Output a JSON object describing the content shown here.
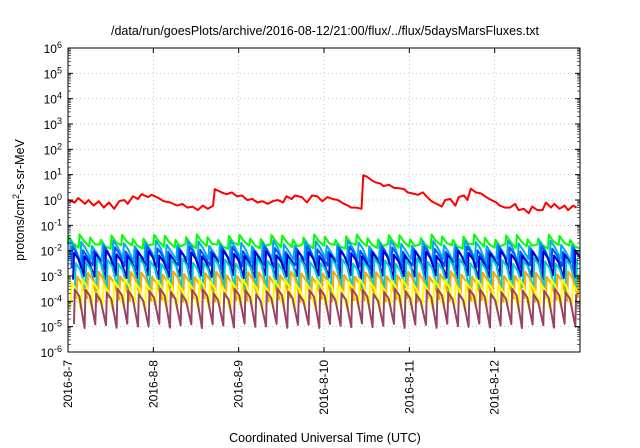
{
  "chart_data": {
    "type": "line",
    "title": "/data/run/goesPlots/archive/2016-08-12/21:00/flux/../flux/5daysMarsFluxes.txt",
    "xlabel": "Coordinated Universal Time (UTC)",
    "ylabel_base": "protons/cm",
    "ylabel_sup": "2",
    "ylabel_rest": "-s-sr-MeV",
    "yscale": "log",
    "ylim_exp": [
      -6,
      6
    ],
    "ytick_base": "10",
    "ytick_exponents": [
      "-6",
      "-5",
      "-4",
      "-3",
      "-2",
      "-1",
      "0",
      "1",
      "2",
      "3",
      "4",
      "5",
      "6"
    ],
    "xticks": [
      "2016-8-7",
      "2016-8-8",
      "2016-8-9",
      "2016-8-10",
      "2016-8-11",
      "2016-8-12"
    ],
    "xlim_days": [
      0,
      6.0
    ],
    "grid": true,
    "legend": "none",
    "series": [
      {
        "color": "#ff0000",
        "points": [
          [
            0.0,
            1.0
          ],
          [
            0.08,
            0.8
          ],
          [
            0.12,
            1.2
          ],
          [
            0.2,
            0.7
          ],
          [
            0.24,
            1.0
          ],
          [
            0.3,
            0.6
          ],
          [
            0.36,
            0.9
          ],
          [
            0.42,
            0.5
          ],
          [
            0.48,
            0.8
          ],
          [
            0.54,
            0.45
          ],
          [
            0.6,
            0.9
          ],
          [
            0.66,
            1.0
          ],
          [
            0.7,
            0.7
          ],
          [
            0.76,
            1.4
          ],
          [
            0.82,
            1.1
          ],
          [
            0.86,
            1.7
          ],
          [
            0.94,
            1.3
          ],
          [
            0.98,
            1.6
          ],
          [
            1.06,
            1.2
          ],
          [
            1.12,
            0.9
          ],
          [
            1.2,
            0.8
          ],
          [
            1.28,
            0.6
          ],
          [
            1.34,
            0.7
          ],
          [
            1.4,
            0.5
          ],
          [
            1.46,
            0.55
          ],
          [
            1.52,
            0.4
          ],
          [
            1.58,
            0.6
          ],
          [
            1.64,
            0.45
          ],
          [
            1.7,
            0.6
          ],
          [
            1.72,
            2.7
          ],
          [
            1.8,
            2.0
          ],
          [
            1.86,
            1.7
          ],
          [
            1.92,
            2.0
          ],
          [
            1.98,
            1.4
          ],
          [
            2.04,
            1.5
          ],
          [
            2.1,
            1.0
          ],
          [
            2.16,
            1.1
          ],
          [
            2.22,
            0.8
          ],
          [
            2.28,
            0.9
          ],
          [
            2.34,
            0.7
          ],
          [
            2.4,
            0.9
          ],
          [
            2.46,
            1.0
          ],
          [
            2.52,
            0.8
          ],
          [
            2.56,
            1.4
          ],
          [
            2.62,
            1.1
          ],
          [
            2.66,
            1.5
          ],
          [
            2.74,
            1.3
          ],
          [
            2.8,
            0.8
          ],
          [
            2.86,
            1.5
          ],
          [
            2.92,
            1.4
          ],
          [
            2.98,
            0.9
          ],
          [
            3.04,
            1.3
          ],
          [
            3.1,
            1.1
          ],
          [
            3.16,
            1.0
          ],
          [
            3.22,
            0.75
          ],
          [
            3.28,
            0.6
          ],
          [
            3.32,
            0.5
          ],
          [
            3.38,
            0.5
          ],
          [
            3.44,
            0.45
          ],
          [
            3.46,
            9.5
          ],
          [
            3.5,
            8.5
          ],
          [
            3.56,
            6.0
          ],
          [
            3.6,
            5.0
          ],
          [
            3.66,
            4.5
          ],
          [
            3.7,
            3.5
          ],
          [
            3.76,
            4.0
          ],
          [
            3.82,
            3.0
          ],
          [
            3.88,
            2.9
          ],
          [
            3.94,
            2.7
          ],
          [
            3.98,
            2.0
          ],
          [
            4.04,
            1.8
          ],
          [
            4.1,
            1.6
          ],
          [
            4.16,
            2.0
          ],
          [
            4.2,
            1.4
          ],
          [
            4.26,
            0.9
          ],
          [
            4.32,
            0.7
          ],
          [
            4.38,
            0.55
          ],
          [
            4.42,
            1.0
          ],
          [
            4.48,
            1.1
          ],
          [
            4.54,
            0.6
          ],
          [
            4.58,
            1.3
          ],
          [
            4.64,
            1.5
          ],
          [
            4.68,
            1.0
          ],
          [
            4.72,
            2.8
          ],
          [
            4.78,
            2.0
          ],
          [
            4.84,
            1.8
          ],
          [
            4.9,
            1.3
          ],
          [
            4.96,
            1.0
          ],
          [
            5.02,
            0.8
          ],
          [
            5.06,
            0.6
          ],
          [
            5.12,
            0.5
          ],
          [
            5.18,
            0.5
          ],
          [
            5.24,
            0.7
          ],
          [
            5.28,
            0.4
          ],
          [
            5.34,
            0.45
          ],
          [
            5.4,
            0.3
          ],
          [
            5.44,
            0.55
          ],
          [
            5.5,
            0.4
          ],
          [
            5.56,
            0.4
          ],
          [
            5.6,
            0.8
          ],
          [
            5.66,
            0.5
          ],
          [
            5.7,
            0.7
          ],
          [
            5.76,
            0.45
          ],
          [
            5.82,
            0.6
          ],
          [
            5.86,
            0.4
          ],
          [
            5.92,
            0.6
          ],
          [
            5.96,
            0.5
          ]
        ]
      },
      {
        "color": "#00ff00",
        "spike": 0.035,
        "base": 0.015,
        "decay": 0.55,
        "cycle_days": 0.125,
        "offset_days": 0.0
      },
      {
        "color": "#00aaee",
        "spike": 0.02,
        "base": 0.004,
        "decay": 0.55,
        "cycle_days": 0.125,
        "offset_days": 0.02
      },
      {
        "color": "#0055ff",
        "spike": 0.012,
        "base": 0.0022,
        "decay": 0.55,
        "cycle_days": 0.125,
        "offset_days": 0.04
      },
      {
        "color": "#0000cc",
        "spike": 0.008,
        "base": 0.0009,
        "decay": 0.55,
        "cycle_days": 0.125,
        "offset_days": 0.06
      },
      {
        "color": "#00cccc",
        "spike": 0.004,
        "base": 0.0003,
        "decay": 0.55,
        "cycle_days": 0.125,
        "offset_days": 0.08
      },
      {
        "color": "#ffa500",
        "spike": 0.0012,
        "base": 0.00012,
        "decay": 0.55,
        "cycle_days": 0.125,
        "offset_days": 0.1
      },
      {
        "color": "#ffff00",
        "spike": 0.0006,
        "base": 5e-05,
        "decay": 0.55,
        "cycle_days": 0.125,
        "offset_days": 0.03
      },
      {
        "color": "#994466",
        "spike": 0.00025,
        "base": 1.1e-05,
        "decay": 0.55,
        "cycle_days": 0.125,
        "offset_days": 0.07
      }
    ]
  }
}
